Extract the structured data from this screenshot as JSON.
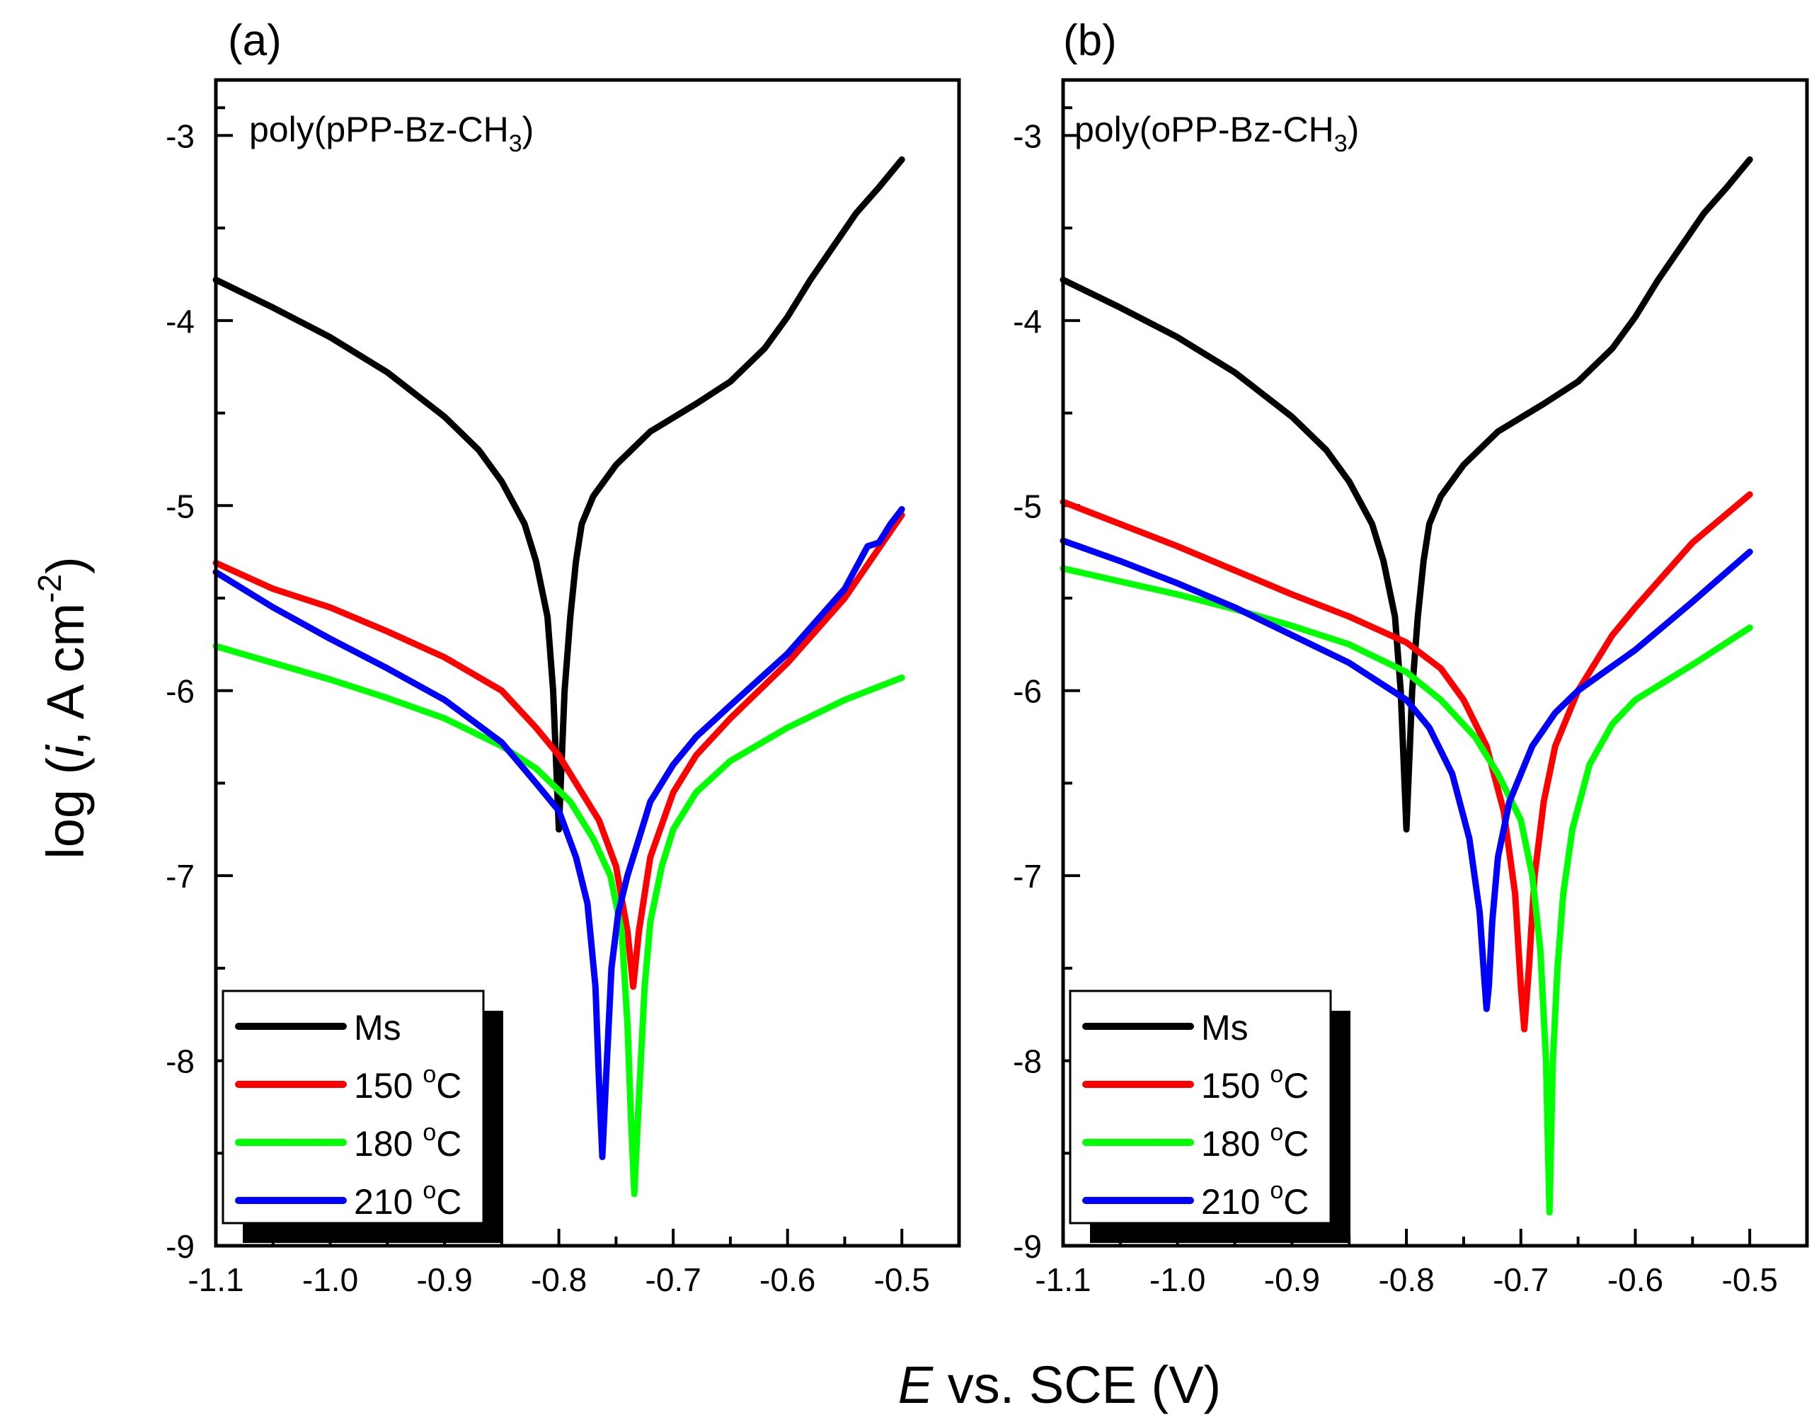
{
  "figure": {
    "ylabel": "log (i, A cm-2)",
    "ylabel_parts": {
      "pre": "log (",
      "italic": "i",
      "mid": ", A cm",
      "sup": "-2",
      "post": ")"
    },
    "xlabel": "E vs. SCE (V)",
    "xlabel_parts": {
      "italic": "E",
      "rest": " vs. SCE (V)"
    }
  },
  "chart_data": [
    {
      "type": "line",
      "panel_label": "(a)",
      "title": "poly(pPP-Bz-CH3)",
      "title_parts": {
        "main": "poly(pPP-Bz-CH",
        "sub": "3",
        "close": ")"
      },
      "xlabel": "E vs. SCE (V)",
      "ylabel": "log (i, A cm-2)",
      "xlim": [
        -1.1,
        -0.45
      ],
      "ylim": [
        -9,
        -2.7
      ],
      "x_ticks": [
        -1.1,
        -1.0,
        -0.9,
        -0.8,
        -0.7,
        -0.6,
        -0.5
      ],
      "x_tick_labels": [
        "-1.1",
        "-1.0",
        "-0.9",
        "-0.8",
        "-0.7",
        "-0.6",
        "-0.5"
      ],
      "y_ticks": [
        -9,
        -8,
        -7,
        -6,
        -5,
        -4,
        -3
      ],
      "y_tick_labels": [
        "-9",
        "-8",
        "-7",
        "-6",
        "-5",
        "-4",
        "-3"
      ],
      "legend_position": "bottom-left",
      "series": [
        {
          "name": "Ms",
          "label_main": "Ms",
          "label_sup": "",
          "label_unit": "",
          "color": "#000000",
          "x": [
            -1.1,
            -1.05,
            -1.0,
            -0.95,
            -0.9,
            -0.87,
            -0.85,
            -0.83,
            -0.82,
            -0.81,
            -0.805,
            -0.8,
            -0.795,
            -0.79,
            -0.785,
            -0.78,
            -0.77,
            -0.75,
            -0.72,
            -0.68,
            -0.65,
            -0.62,
            -0.6,
            -0.58,
            -0.56,
            -0.54,
            -0.52,
            -0.5
          ],
          "y": [
            -3.78,
            -3.93,
            -4.09,
            -4.28,
            -4.52,
            -4.7,
            -4.87,
            -5.1,
            -5.3,
            -5.6,
            -6.0,
            -6.75,
            -6.0,
            -5.6,
            -5.3,
            -5.1,
            -4.95,
            -4.78,
            -4.6,
            -4.45,
            -4.33,
            -4.15,
            -3.98,
            -3.78,
            -3.6,
            -3.42,
            -3.28,
            -3.13
          ]
        },
        {
          "name": "150 °C",
          "label_main": "150 ",
          "label_sup": "o",
          "label_unit": "C",
          "color": "#ff0000",
          "x": [
            -1.1,
            -1.05,
            -1.0,
            -0.95,
            -0.9,
            -0.85,
            -0.82,
            -0.8,
            -0.78,
            -0.765,
            -0.75,
            -0.74,
            -0.735,
            -0.73,
            -0.72,
            -0.7,
            -0.68,
            -0.65,
            -0.6,
            -0.55,
            -0.5
          ],
          "y": [
            -5.31,
            -5.45,
            -5.55,
            -5.68,
            -5.82,
            -6.0,
            -6.2,
            -6.35,
            -6.55,
            -6.7,
            -6.95,
            -7.3,
            -7.6,
            -7.3,
            -6.9,
            -6.55,
            -6.35,
            -6.15,
            -5.85,
            -5.5,
            -5.05
          ]
        },
        {
          "name": "180 °C",
          "label_main": "180 ",
          "label_sup": "o",
          "label_unit": "C",
          "color": "#00ff00",
          "x": [
            -1.1,
            -1.05,
            -1.0,
            -0.95,
            -0.9,
            -0.85,
            -0.82,
            -0.79,
            -0.77,
            -0.755,
            -0.745,
            -0.74,
            -0.737,
            -0.734,
            -0.73,
            -0.725,
            -0.72,
            -0.71,
            -0.7,
            -0.68,
            -0.65,
            -0.6,
            -0.55,
            -0.5
          ],
          "y": [
            -5.76,
            -5.85,
            -5.94,
            -6.04,
            -6.15,
            -6.3,
            -6.42,
            -6.6,
            -6.8,
            -7.0,
            -7.3,
            -7.8,
            -8.3,
            -8.72,
            -8.2,
            -7.6,
            -7.25,
            -6.95,
            -6.75,
            -6.55,
            -6.38,
            -6.2,
            -6.05,
            -5.93
          ]
        },
        {
          "name": "210 °C",
          "label_main": "210 ",
          "label_sup": "o",
          "label_unit": "C",
          "color": "#0000ff",
          "x": [
            -1.1,
            -1.05,
            -1.0,
            -0.95,
            -0.9,
            -0.85,
            -0.82,
            -0.8,
            -0.785,
            -0.775,
            -0.768,
            -0.765,
            -0.762,
            -0.758,
            -0.754,
            -0.748,
            -0.74,
            -0.73,
            -0.72,
            -0.7,
            -0.68,
            -0.65,
            -0.6,
            -0.55,
            -0.53,
            -0.52,
            -0.51,
            -0.5
          ],
          "y": [
            -5.36,
            -5.55,
            -5.72,
            -5.88,
            -6.05,
            -6.28,
            -6.5,
            -6.65,
            -6.9,
            -7.15,
            -7.6,
            -8.1,
            -8.52,
            -8.0,
            -7.5,
            -7.2,
            -7.0,
            -6.8,
            -6.6,
            -6.4,
            -6.25,
            -6.08,
            -5.8,
            -5.45,
            -5.22,
            -5.2,
            -5.1,
            -5.02
          ]
        }
      ]
    },
    {
      "type": "line",
      "panel_label": "(b)",
      "title": "poly(oPP-Bz-CH3)",
      "title_parts": {
        "main": "poly(oPP-Bz-CH",
        "sub": "3",
        "close": ")"
      },
      "xlabel": "E vs. SCE (V)",
      "ylabel": "log (i, A cm-2)",
      "xlim": [
        -1.1,
        -0.45
      ],
      "ylim": [
        -9,
        -2.7
      ],
      "x_ticks": [
        -1.1,
        -1.0,
        -0.9,
        -0.8,
        -0.7,
        -0.6,
        -0.5
      ],
      "x_tick_labels": [
        "-1.1",
        "-1.0",
        "-0.9",
        "-0.8",
        "-0.7",
        "-0.6",
        "-0.5"
      ],
      "y_ticks": [
        -9,
        -8,
        -7,
        -6,
        -5,
        -4,
        -3
      ],
      "y_tick_labels": [
        "-9",
        "-8",
        "-7",
        "-6",
        "-5",
        "-4",
        "-3"
      ],
      "legend_position": "bottom-left",
      "series": [
        {
          "name": "Ms",
          "label_main": "Ms",
          "label_sup": "",
          "label_unit": "",
          "color": "#000000",
          "x": [
            -1.1,
            -1.05,
            -1.0,
            -0.95,
            -0.9,
            -0.87,
            -0.85,
            -0.83,
            -0.82,
            -0.81,
            -0.805,
            -0.8,
            -0.795,
            -0.79,
            -0.785,
            -0.78,
            -0.77,
            -0.75,
            -0.72,
            -0.68,
            -0.65,
            -0.62,
            -0.6,
            -0.58,
            -0.56,
            -0.54,
            -0.52,
            -0.5
          ],
          "y": [
            -3.78,
            -3.93,
            -4.09,
            -4.28,
            -4.52,
            -4.7,
            -4.87,
            -5.1,
            -5.3,
            -5.6,
            -6.0,
            -6.75,
            -6.0,
            -5.6,
            -5.3,
            -5.1,
            -4.95,
            -4.78,
            -4.6,
            -4.45,
            -4.33,
            -4.15,
            -3.98,
            -3.78,
            -3.6,
            -3.42,
            -3.28,
            -3.13
          ]
        },
        {
          "name": "150 °C",
          "label_main": "150 ",
          "label_sup": "o",
          "label_unit": "C",
          "color": "#ff0000",
          "x": [
            -1.1,
            -1.05,
            -1.0,
            -0.95,
            -0.9,
            -0.85,
            -0.8,
            -0.77,
            -0.75,
            -0.73,
            -0.715,
            -0.705,
            -0.7,
            -0.697,
            -0.693,
            -0.688,
            -0.68,
            -0.67,
            -0.65,
            -0.62,
            -0.6,
            -0.55,
            -0.5
          ],
          "y": [
            -4.98,
            -5.1,
            -5.22,
            -5.35,
            -5.48,
            -5.6,
            -5.74,
            -5.88,
            -6.05,
            -6.3,
            -6.65,
            -7.1,
            -7.6,
            -7.83,
            -7.5,
            -7.0,
            -6.6,
            -6.3,
            -6.0,
            -5.7,
            -5.55,
            -5.2,
            -4.94
          ]
        },
        {
          "name": "180 °C",
          "label_main": "180 ",
          "label_sup": "o",
          "label_unit": "C",
          "color": "#00ff00",
          "x": [
            -1.1,
            -1.05,
            -1.0,
            -0.95,
            -0.9,
            -0.85,
            -0.8,
            -0.77,
            -0.74,
            -0.72,
            -0.7,
            -0.69,
            -0.683,
            -0.678,
            -0.675,
            -0.672,
            -0.668,
            -0.663,
            -0.655,
            -0.64,
            -0.62,
            -0.6,
            -0.55,
            -0.5
          ],
          "y": [
            -5.34,
            -5.41,
            -5.48,
            -5.56,
            -5.65,
            -5.75,
            -5.9,
            -6.05,
            -6.25,
            -6.45,
            -6.7,
            -7.0,
            -7.4,
            -8.0,
            -8.82,
            -8.0,
            -7.5,
            -7.1,
            -6.75,
            -6.4,
            -6.18,
            -6.05,
            -5.86,
            -5.66
          ]
        },
        {
          "name": "210 °C",
          "label_main": "210 ",
          "label_sup": "o",
          "label_unit": "C",
          "color": "#0000ff",
          "x": [
            -1.1,
            -1.05,
            -1.0,
            -0.95,
            -0.9,
            -0.85,
            -0.8,
            -0.78,
            -0.76,
            -0.745,
            -0.736,
            -0.732,
            -0.73,
            -0.728,
            -0.725,
            -0.72,
            -0.71,
            -0.7,
            -0.69,
            -0.67,
            -0.65,
            -0.6,
            -0.55,
            -0.5
          ],
          "y": [
            -5.19,
            -5.3,
            -5.42,
            -5.55,
            -5.7,
            -5.85,
            -6.05,
            -6.2,
            -6.45,
            -6.8,
            -7.2,
            -7.55,
            -7.72,
            -7.6,
            -7.25,
            -6.9,
            -6.6,
            -6.45,
            -6.3,
            -6.12,
            -6.0,
            -5.78,
            -5.52,
            -5.25
          ]
        }
      ]
    }
  ]
}
